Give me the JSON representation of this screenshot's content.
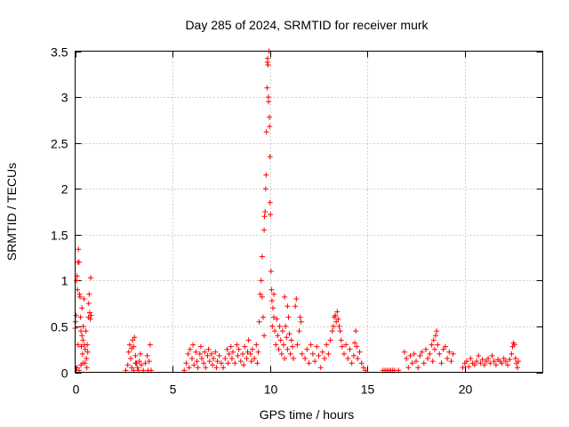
{
  "chart_data": {
    "type": "scatter",
    "title": "Day 285 of 2024, SRMTID for receiver murk",
    "xlabel": "GPS time / hours",
    "ylabel": "SRMTID / TECUs",
    "xlim": [
      0,
      24
    ],
    "ylim": [
      0,
      3.5
    ],
    "xticks": [
      0,
      5,
      10,
      15,
      20
    ],
    "yticks": [
      0,
      0.5,
      1,
      1.5,
      2,
      2.5,
      3,
      3.5
    ],
    "xtick_labels": [
      "0",
      "5",
      "10",
      "15",
      "20"
    ],
    "ytick_labels": [
      "0",
      "0.5",
      "1",
      "1.5",
      "2",
      "2.5",
      "3",
      "3.5"
    ],
    "grid": true,
    "marker": "+",
    "series": [
      {
        "name": "SRMTID",
        "color": "#ff0000",
        "points": [
          [
            0.0,
            0.48
          ],
          [
            0.02,
            0.55
          ],
          [
            0.05,
            0.62
          ],
          [
            0.07,
            1.0
          ],
          [
            0.1,
            1.05
          ],
          [
            0.12,
            0.9
          ],
          [
            0.15,
            1.2
          ],
          [
            0.17,
            1.34
          ],
          [
            0.2,
            1.2
          ],
          [
            0.22,
            0.85
          ],
          [
            0.25,
            0.82
          ],
          [
            0.28,
            0.6
          ],
          [
            0.3,
            0.45
          ],
          [
            0.32,
            0.28
          ],
          [
            0.35,
            0.7
          ],
          [
            0.38,
            0.2
          ],
          [
            0.4,
            0.35
          ],
          [
            0.42,
            0.5
          ],
          [
            0.45,
            0.8
          ],
          [
            0.48,
            0.3
          ],
          [
            0.5,
            0.1
          ],
          [
            0.52,
            0.25
          ],
          [
            0.55,
            0.45
          ],
          [
            0.58,
            0.15
          ],
          [
            0.6,
            0.05
          ],
          [
            0.62,
            0.3
          ],
          [
            0.65,
            0.22
          ],
          [
            0.68,
            0.6
          ],
          [
            0.7,
            0.75
          ],
          [
            0.72,
            0.85
          ],
          [
            0.75,
            0.65
          ],
          [
            0.78,
            0.58
          ],
          [
            0.8,
            1.03
          ],
          [
            0.82,
            0.62
          ],
          [
            0.1,
            0.05
          ],
          [
            0.2,
            0.02
          ],
          [
            0.3,
            0.08
          ],
          [
            0.4,
            0.1
          ],
          [
            0.15,
            0.3
          ],
          [
            0.35,
            0.4
          ],
          [
            2.6,
            0.02
          ],
          [
            2.7,
            0.08
          ],
          [
            2.75,
            0.22
          ],
          [
            2.8,
            0.3
          ],
          [
            2.85,
            0.15
          ],
          [
            2.9,
            0.26
          ],
          [
            2.95,
            0.35
          ],
          [
            3.0,
            0.28
          ],
          [
            3.05,
            0.38
          ],
          [
            3.1,
            0.18
          ],
          [
            3.15,
            0.1
          ],
          [
            3.2,
            0.05
          ],
          [
            3.25,
            0.02
          ],
          [
            3.3,
            0.12
          ],
          [
            3.35,
            0.2
          ],
          [
            3.4,
            0.08
          ],
          [
            3.5,
            0.02
          ],
          [
            3.6,
            0.1
          ],
          [
            3.7,
            0.18
          ],
          [
            3.75,
            0.02
          ],
          [
            3.8,
            0.12
          ],
          [
            3.85,
            0.3
          ],
          [
            3.9,
            0.02
          ],
          [
            2.9,
            0.05
          ],
          [
            3.0,
            0.02
          ],
          [
            3.1,
            0.1
          ],
          [
            5.6,
            0.02
          ],
          [
            5.7,
            0.1
          ],
          [
            5.8,
            0.2
          ],
          [
            5.85,
            0.05
          ],
          [
            5.9,
            0.25
          ],
          [
            6.0,
            0.15
          ],
          [
            6.05,
            0.3
          ],
          [
            6.1,
            0.08
          ],
          [
            6.2,
            0.22
          ],
          [
            6.25,
            0.12
          ],
          [
            6.3,
            0.05
          ],
          [
            6.4,
            0.2
          ],
          [
            6.45,
            0.28
          ],
          [
            6.5,
            0.15
          ],
          [
            6.6,
            0.1
          ],
          [
            6.65,
            0.22
          ],
          [
            6.7,
            0.05
          ],
          [
            6.8,
            0.18
          ],
          [
            6.85,
            0.25
          ],
          [
            6.9,
            0.12
          ],
          [
            7.0,
            0.2
          ],
          [
            7.05,
            0.08
          ],
          [
            7.1,
            0.15
          ],
          [
            7.2,
            0.22
          ],
          [
            7.25,
            0.05
          ],
          [
            7.3,
            0.12
          ],
          [
            7.4,
            0.18
          ],
          [
            7.5,
            0.1
          ],
          [
            7.6,
            0.05
          ],
          [
            7.7,
            0.15
          ],
          [
            7.8,
            0.25
          ],
          [
            7.85,
            0.1
          ],
          [
            7.9,
            0.2
          ],
          [
            8.0,
            0.28
          ],
          [
            8.05,
            0.15
          ],
          [
            8.1,
            0.22
          ],
          [
            8.2,
            0.1
          ],
          [
            8.3,
            0.3
          ],
          [
            8.35,
            0.18
          ],
          [
            8.4,
            0.25
          ],
          [
            8.5,
            0.12
          ],
          [
            8.6,
            0.2
          ],
          [
            8.65,
            0.08
          ],
          [
            8.7,
            0.28
          ],
          [
            8.8,
            0.15
          ],
          [
            8.85,
            0.22
          ],
          [
            8.9,
            0.35
          ],
          [
            9.0,
            0.2
          ],
          [
            9.05,
            0.12
          ],
          [
            9.1,
            0.25
          ],
          [
            9.2,
            0.15
          ],
          [
            9.3,
            0.3
          ],
          [
            9.35,
            0.1
          ],
          [
            9.4,
            0.22
          ],
          [
            9.45,
            0.55
          ],
          [
            9.5,
            0.85
          ],
          [
            9.55,
            1.0
          ],
          [
            9.6,
            1.26
          ],
          [
            9.65,
            0.6
          ],
          [
            9.7,
            1.55
          ],
          [
            9.72,
            1.7
          ],
          [
            9.75,
            1.75
          ],
          [
            9.78,
            2.0
          ],
          [
            9.8,
            2.15
          ],
          [
            9.82,
            2.62
          ],
          [
            9.85,
            3.1
          ],
          [
            9.87,
            3.38
          ],
          [
            9.88,
            3.42
          ],
          [
            9.9,
            3.35
          ],
          [
            9.92,
            3.0
          ],
          [
            9.93,
            2.95
          ],
          [
            9.95,
            3.5
          ],
          [
            9.97,
            2.78
          ],
          [
            9.98,
            2.68
          ],
          [
            10.0,
            2.35
          ],
          [
            10.0,
            1.85
          ],
          [
            10.02,
            1.72
          ],
          [
            10.05,
            1.1
          ],
          [
            10.08,
            0.9
          ],
          [
            10.1,
            0.78
          ],
          [
            10.12,
            0.5
          ],
          [
            10.15,
            0.7
          ],
          [
            10.2,
            0.6
          ],
          [
            10.25,
            0.45
          ],
          [
            10.3,
            0.3
          ],
          [
            10.35,
            0.58
          ],
          [
            10.4,
            0.4
          ],
          [
            10.45,
            0.25
          ],
          [
            10.5,
            0.5
          ],
          [
            10.55,
            0.35
          ],
          [
            10.6,
            0.2
          ],
          [
            10.65,
            0.45
          ],
          [
            10.7,
            0.3
          ],
          [
            10.75,
            0.15
          ],
          [
            10.8,
            0.5
          ],
          [
            10.85,
            0.38
          ],
          [
            10.9,
            0.25
          ],
          [
            10.95,
            0.6
          ],
          [
            11.0,
            0.42
          ],
          [
            11.05,
            0.2
          ],
          [
            11.1,
            0.35
          ],
          [
            11.15,
            0.28
          ],
          [
            11.2,
            0.15
          ],
          [
            11.3,
            0.72
          ],
          [
            11.35,
            0.8
          ],
          [
            11.4,
            0.3
          ],
          [
            11.5,
            0.45
          ],
          [
            11.55,
            0.6
          ],
          [
            11.6,
            0.55
          ],
          [
            11.65,
            0.2
          ],
          [
            10.75,
            0.82
          ],
          [
            10.9,
            0.72
          ],
          [
            10.2,
            0.85
          ],
          [
            9.6,
            0.82
          ],
          [
            9.7,
            0.4
          ],
          [
            11.8,
            0.15
          ],
          [
            11.9,
            0.25
          ],
          [
            12.0,
            0.1
          ],
          [
            12.1,
            0.3
          ],
          [
            12.2,
            0.2
          ],
          [
            12.3,
            0.12
          ],
          [
            12.4,
            0.28
          ],
          [
            12.5,
            0.18
          ],
          [
            12.6,
            0.05
          ],
          [
            12.7,
            0.22
          ],
          [
            12.8,
            0.15
          ],
          [
            12.9,
            0.3
          ],
          [
            13.0,
            0.2
          ],
          [
            13.1,
            0.35
          ],
          [
            13.2,
            0.45
          ],
          [
            13.25,
            0.5
          ],
          [
            13.3,
            0.6
          ],
          [
            13.35,
            0.62
          ],
          [
            13.4,
            0.55
          ],
          [
            13.45,
            0.66
          ],
          [
            13.5,
            0.58
          ],
          [
            13.55,
            0.5
          ],
          [
            13.6,
            0.45
          ],
          [
            13.65,
            0.35
          ],
          [
            13.7,
            0.28
          ],
          [
            13.8,
            0.2
          ],
          [
            13.9,
            0.3
          ],
          [
            14.0,
            0.15
          ],
          [
            14.1,
            0.25
          ],
          [
            14.2,
            0.1
          ],
          [
            14.3,
            0.18
          ],
          [
            14.35,
            0.32
          ],
          [
            14.4,
            0.45
          ],
          [
            14.45,
            0.28
          ],
          [
            14.5,
            0.15
          ],
          [
            14.6,
            0.22
          ],
          [
            14.7,
            0.1
          ],
          [
            14.8,
            0.05
          ],
          [
            14.9,
            0.02
          ],
          [
            15.8,
            0.02
          ],
          [
            15.9,
            0.02
          ],
          [
            16.0,
            0.02
          ],
          [
            16.1,
            0.02
          ],
          [
            16.2,
            0.02
          ],
          [
            16.3,
            0.02
          ],
          [
            16.4,
            0.02
          ],
          [
            16.6,
            0.02
          ],
          [
            16.9,
            0.22
          ],
          [
            17.0,
            0.15
          ],
          [
            17.1,
            0.05
          ],
          [
            17.2,
            0.18
          ],
          [
            17.3,
            0.1
          ],
          [
            17.4,
            0.2
          ],
          [
            17.5,
            0.12
          ],
          [
            17.6,
            0.05
          ],
          [
            17.7,
            0.18
          ],
          [
            17.8,
            0.22
          ],
          [
            17.9,
            0.1
          ],
          [
            18.0,
            0.25
          ],
          [
            18.1,
            0.15
          ],
          [
            18.2,
            0.2
          ],
          [
            18.3,
            0.3
          ],
          [
            18.35,
            0.12
          ],
          [
            18.4,
            0.35
          ],
          [
            18.45,
            0.25
          ],
          [
            18.5,
            0.4
          ],
          [
            18.55,
            0.45
          ],
          [
            18.6,
            0.3
          ],
          [
            18.7,
            0.2
          ],
          [
            18.8,
            0.1
          ],
          [
            18.9,
            0.25
          ],
          [
            19.0,
            0.28
          ],
          [
            19.1,
            0.15
          ],
          [
            19.2,
            0.22
          ],
          [
            19.3,
            0.12
          ],
          [
            19.4,
            0.2
          ],
          [
            19.9,
            0.05
          ],
          [
            20.0,
            0.1
          ],
          [
            20.1,
            0.12
          ],
          [
            20.2,
            0.06
          ],
          [
            20.3,
            0.15
          ],
          [
            20.4,
            0.1
          ],
          [
            20.5,
            0.08
          ],
          [
            20.6,
            0.12
          ],
          [
            20.7,
            0.18
          ],
          [
            20.8,
            0.1
          ],
          [
            20.9,
            0.14
          ],
          [
            21.0,
            0.08
          ],
          [
            21.1,
            0.12
          ],
          [
            21.2,
            0.15
          ],
          [
            21.3,
            0.1
          ],
          [
            21.4,
            0.18
          ],
          [
            21.5,
            0.12
          ],
          [
            21.6,
            0.08
          ],
          [
            21.7,
            0.14
          ],
          [
            21.8,
            0.12
          ],
          [
            21.9,
            0.1
          ],
          [
            22.0,
            0.15
          ],
          [
            22.1,
            0.12
          ],
          [
            22.2,
            0.08
          ],
          [
            22.3,
            0.14
          ],
          [
            22.4,
            0.2
          ],
          [
            22.45,
            0.28
          ],
          [
            22.5,
            0.32
          ],
          [
            22.55,
            0.3
          ],
          [
            22.6,
            0.15
          ],
          [
            22.65,
            0.1
          ],
          [
            22.7,
            0.05
          ],
          [
            22.75,
            0.12
          ]
        ]
      }
    ]
  }
}
